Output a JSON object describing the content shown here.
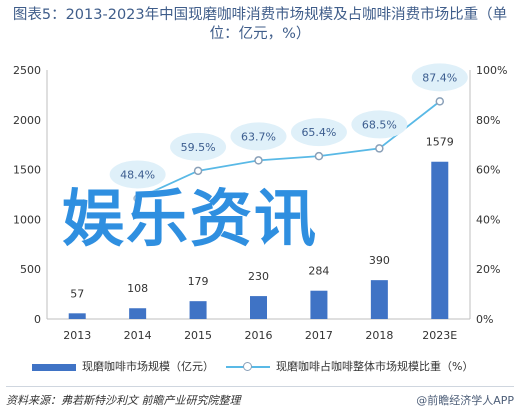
{
  "title": "图表5：2013-2023年中国现磨咖啡消费市场规模及占咖啡消费市场比重（单位：亿元，%）",
  "watermark": "娱乐资讯",
  "source": "资料来源：弗若斯特沙利文  前瞻产业研究院整理",
  "brand": "@前瞻经济学人APP",
  "colors": {
    "bar": "#3f73c5",
    "line": "#59b9e6",
    "bubble": "#dff0f9",
    "grid": "#d9d9d9"
  },
  "chart_data": {
    "type": "bar",
    "categories": [
      "2013",
      "2014",
      "2015",
      "2016",
      "2017",
      "2018",
      "2023E"
    ],
    "series": [
      {
        "name": "现磨咖啡市场规模（亿元）",
        "type": "bar",
        "axis": "left",
        "values": [
          57,
          108,
          179,
          230,
          284,
          390,
          1579
        ],
        "labels": [
          "57",
          "108",
          "179",
          "230",
          "284",
          "390",
          "1579"
        ]
      },
      {
        "name": "现磨咖啡占咖啡整体市场规模比重（%）",
        "type": "line",
        "axis": "right",
        "values": [
          null,
          48.4,
          59.5,
          63.7,
          65.4,
          68.5,
          87.4
        ],
        "labels": [
          "",
          "48.4%",
          "59.5%",
          "63.7%",
          "65.4%",
          "68.5%",
          "87.4%"
        ]
      }
    ],
    "y_left": {
      "min": 0,
      "max": 2500,
      "ticks": [
        "0",
        "500",
        "1000",
        "1500",
        "2000",
        "2500"
      ]
    },
    "y_right": {
      "min": 0,
      "max": 100,
      "ticks": [
        "0%",
        "20%",
        "40%",
        "60%",
        "80%",
        "100%"
      ]
    },
    "legend": "bottom",
    "grid": false
  }
}
